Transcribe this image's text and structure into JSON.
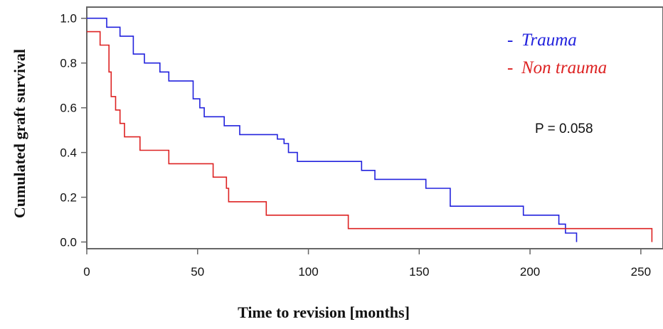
{
  "chart_data": {
    "type": "line",
    "title": "",
    "xlabel": "Time to revision [months]",
    "ylabel": "Cumulated graft survival",
    "xlim": [
      0,
      260
    ],
    "ylim": [
      -0.03,
      1.05
    ],
    "x_ticks": [
      "0",
      "50",
      "100",
      "150",
      "200",
      "250"
    ],
    "x_tick_values": [
      0,
      50,
      100,
      150,
      200,
      250
    ],
    "y_ticks": [
      "0.0",
      "0.2",
      "0.4",
      "0.6",
      "0.8",
      "1.0"
    ],
    "y_tick_values": [
      0.0,
      0.2,
      0.4,
      0.6,
      0.8,
      1.0
    ],
    "grid": false,
    "legend_position": "top-right",
    "series": [
      {
        "name": "Trauma",
        "color": "#2222dd",
        "step_points": [
          [
            0,
            1.0
          ],
          [
            9,
            0.96
          ],
          [
            15,
            0.92
          ],
          [
            21,
            0.84
          ],
          [
            26,
            0.8
          ],
          [
            33,
            0.76
          ],
          [
            37,
            0.72
          ],
          [
            48,
            0.64
          ],
          [
            51,
            0.6
          ],
          [
            53,
            0.56
          ],
          [
            62,
            0.52
          ],
          [
            69,
            0.48
          ],
          [
            86,
            0.46
          ],
          [
            89,
            0.44
          ],
          [
            91,
            0.4
          ],
          [
            95,
            0.36
          ],
          [
            124,
            0.32
          ],
          [
            130,
            0.28
          ],
          [
            153,
            0.24
          ],
          [
            164,
            0.16
          ],
          [
            197,
            0.12
          ],
          [
            213,
            0.08
          ],
          [
            216,
            0.04
          ],
          [
            221,
            0.0
          ]
        ]
      },
      {
        "name": "Non trauma",
        "color": "#dd2222",
        "step_points": [
          [
            0,
            0.94
          ],
          [
            6,
            0.88
          ],
          [
            10,
            0.76
          ],
          [
            11,
            0.65
          ],
          [
            13,
            0.59
          ],
          [
            15,
            0.53
          ],
          [
            17,
            0.47
          ],
          [
            24,
            0.41
          ],
          [
            37,
            0.35
          ],
          [
            57,
            0.29
          ],
          [
            63,
            0.24
          ],
          [
            64,
            0.18
          ],
          [
            81,
            0.12
          ],
          [
            118,
            0.06
          ],
          [
            255,
            0.0
          ]
        ]
      }
    ],
    "annotations": [
      "P = 0.058"
    ]
  }
}
